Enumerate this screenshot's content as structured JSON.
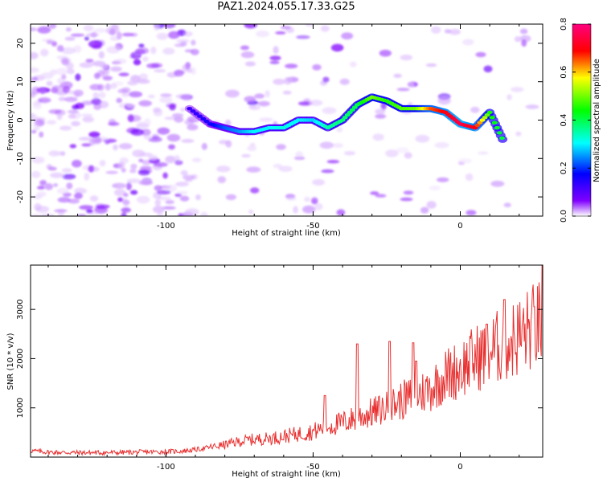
{
  "title": "PAZ1.2024.055.17.33.G25",
  "chart_data": [
    {
      "type": "heatmap",
      "title": "PAZ1.2024.055.17.33.G25",
      "xlabel": "Height of straight line (km)",
      "ylabel": "Frequency (Hz)",
      "xlim": [
        -146,
        28
      ],
      "ylim": [
        -25,
        25
      ],
      "xticks": [
        "-100",
        "-50",
        "0"
      ],
      "xtick_values": [
        -100,
        -50,
        0
      ],
      "yticks": [
        "-20",
        "-10",
        "0",
        "10",
        "20"
      ],
      "ytick_values": [
        -20,
        -10,
        0,
        10,
        20
      ],
      "colorbar": {
        "label": "Normalized spectral amplitude",
        "range": [
          0,
          0.8
        ],
        "ticks": [
          "0.0",
          "0.2",
          "0.4",
          "0.6",
          "0.8"
        ],
        "tick_values": [
          0.0,
          0.2,
          0.4,
          0.6,
          0.8
        ],
        "colors": [
          "#ffffff",
          "#8000ff",
          "#0000ff",
          "#00ffff",
          "#00ff00",
          "#ffff00",
          "#ff0000",
          "#ff0080"
        ]
      },
      "ridge": {
        "x": [
          -92,
          -85,
          -80,
          -75,
          -70,
          -65,
          -60,
          -55,
          -50,
          -45,
          -40,
          -35,
          -30,
          -25,
          -20,
          -15,
          -10,
          -5,
          0,
          5,
          10,
          15
        ],
        "frequency": [
          3,
          -1,
          -2,
          -3,
          -3,
          -2,
          -2,
          0,
          0,
          -2,
          0,
          4,
          6,
          5,
          3,
          3,
          3,
          2,
          -1,
          -2,
          2,
          -6
        ],
        "amplitude": [
          0.12,
          0.16,
          0.22,
          0.25,
          0.3,
          0.3,
          0.32,
          0.3,
          0.28,
          0.35,
          0.38,
          0.4,
          0.5,
          0.45,
          0.48,
          0.5,
          0.65,
          0.7,
          0.75,
          0.7,
          0.45,
          0.4
        ]
      }
    },
    {
      "type": "line",
      "xlabel": "Height of straight line (km)",
      "ylabel": "SNR (10 * v/v)",
      "xlim": [
        -146,
        28
      ],
      "ylim": [
        0,
        3900
      ],
      "xticks": [
        "-100",
        "-50",
        "0"
      ],
      "xtick_values": [
        -100,
        -50,
        0
      ],
      "yticks": [
        "1000",
        "2000",
        "3000"
      ],
      "ytick_values": [
        1000,
        2000,
        3000
      ],
      "color": "#e83030",
      "x": [
        -146,
        -140,
        -130,
        -120,
        -110,
        -100,
        -95,
        -90,
        -85,
        -80,
        -75,
        -70,
        -65,
        -60,
        -55,
        -50,
        -45,
        -40,
        -35,
        -30,
        -25,
        -20,
        -15,
        -10,
        -5,
        0,
        5,
        10,
        15,
        20,
        25,
        28
      ],
      "y": [
        130,
        100,
        90,
        90,
        100,
        110,
        120,
        150,
        200,
        250,
        320,
        360,
        380,
        420,
        470,
        520,
        620,
        700,
        800,
        900,
        1000,
        1150,
        1250,
        1400,
        1650,
        1800,
        2000,
        2150,
        2300,
        2450,
        2650,
        2700
      ],
      "spikes": [
        {
          "x": -46,
          "y": 1250
        },
        {
          "x": -35,
          "y": 2300
        },
        {
          "x": -24,
          "y": 2350
        },
        {
          "x": -16,
          "y": 2320
        },
        {
          "x": -15,
          "y": 1950
        },
        {
          "x": 9,
          "y": 2700
        },
        {
          "x": 15,
          "y": 3200
        },
        {
          "x": 28,
          "y": 3900
        }
      ]
    }
  ]
}
